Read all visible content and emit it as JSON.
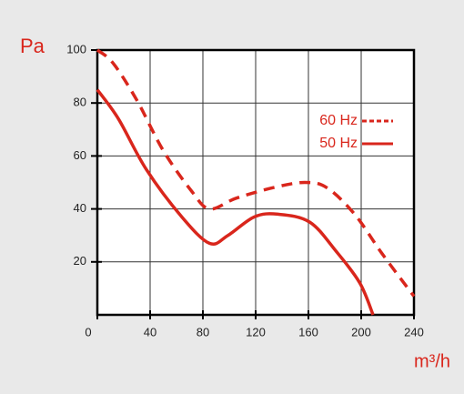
{
  "chart_data": {
    "type": "line",
    "y_unit": "Pa",
    "x_unit": "m³/h",
    "xlim": [
      0,
      240
    ],
    "xticks": [
      0,
      40,
      80,
      120,
      160,
      200,
      240
    ],
    "ylim": [
      0,
      100
    ],
    "yticks": [
      20,
      40,
      60,
      80,
      100
    ],
    "grid": true,
    "legend_position": "upper right",
    "series": [
      {
        "name": "60 Hz",
        "color": "#d9261c",
        "style": "dashed",
        "x": [
          0,
          12,
          30,
          50,
          71,
          85,
          105,
          133,
          157,
          174,
          195,
          216,
          240
        ],
        "values": [
          100,
          95,
          81,
          62,
          47,
          40,
          44,
          48,
          50,
          48,
          38,
          23,
          7
        ]
      },
      {
        "name": "50 Hz",
        "color": "#d9261c",
        "style": "solid",
        "x": [
          0,
          16,
          37,
          64,
          85,
          99,
          119,
          137,
          161,
          181,
          199,
          209
        ],
        "values": [
          85,
          74,
          55,
          37,
          27,
          30,
          37,
          38,
          35,
          24,
          12,
          0
        ]
      }
    ]
  }
}
